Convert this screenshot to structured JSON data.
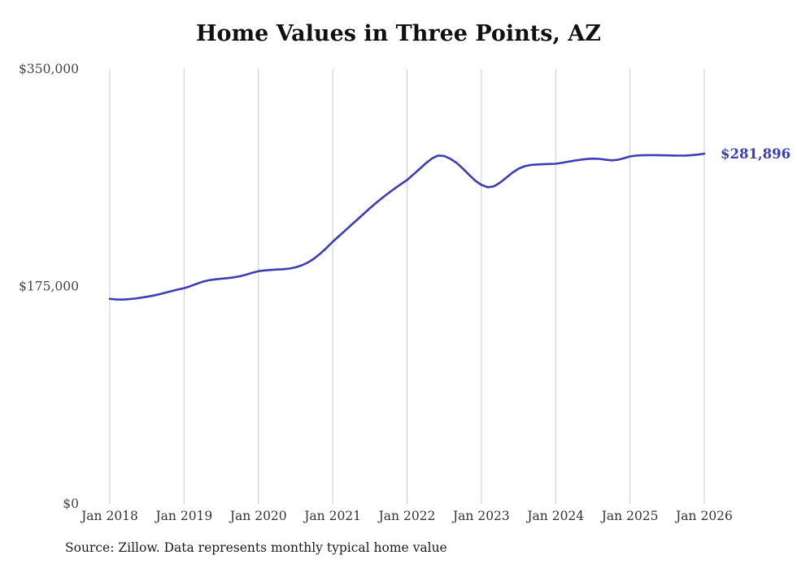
{
  "page": {
    "title": "Home Values in Three Points, AZ",
    "source_note": "Source: Zillow. Data represents monthly typical home value"
  },
  "colors": {
    "accent": "#3d3db8",
    "grid": "#cccccc",
    "axis_text": "#444444"
  },
  "chart_data": {
    "type": "line",
    "title": "Home Values in Three Points, AZ",
    "xlabel": "",
    "ylabel": "",
    "ylim": [
      0,
      350000
    ],
    "grid": "vertical-only",
    "legend": "none",
    "x_tick_labels": [
      "Jan 2018",
      "Jan 2019",
      "Jan 2020",
      "Jan 2021",
      "Jan 2022",
      "Jan 2023",
      "Jan 2024",
      "Jan 2025",
      "Jan 2026"
    ],
    "y_ticks": [
      {
        "label": "$0",
        "value": 0
      },
      {
        "label": "$175,000",
        "value": 175000
      },
      {
        "label": "$350,000",
        "value": 350000
      }
    ],
    "end_label": "$281,896",
    "end_value": 281896,
    "series": [
      {
        "name": "Monthly typical home value",
        "color": "#3d3db8",
        "first_point": "Jan 2018",
        "last_point": "Jan 2026",
        "values": [
          165000,
          164600,
          164400,
          164700,
          165200,
          165900,
          166700,
          167600,
          168700,
          170000,
          171300,
          172500,
          173600,
          175200,
          177000,
          178800,
          180000,
          180700,
          181200,
          181700,
          182300,
          183200,
          184500,
          186000,
          187300,
          187900,
          188300,
          188600,
          188900,
          189400,
          190400,
          192000,
          194300,
          197500,
          201500,
          206000,
          211000,
          215500,
          220000,
          224500,
          229000,
          233500,
          238000,
          242200,
          246300,
          250200,
          253800,
          257300,
          260700,
          265000,
          269500,
          274000,
          278000,
          280400,
          280000,
          277800,
          274500,
          270000,
          265000,
          260200,
          256800,
          254900,
          255500,
          258500,
          262500,
          266500,
          269800,
          271800,
          272800,
          273200,
          273400,
          273600,
          273800,
          274500,
          275400,
          276300,
          277000,
          277600,
          277900,
          277700,
          277100,
          276500,
          276900,
          278200,
          279700,
          280300,
          280600,
          280700,
          280700,
          280600,
          280500,
          280400,
          280300,
          280400,
          280700,
          281200,
          281896
        ]
      }
    ]
  }
}
